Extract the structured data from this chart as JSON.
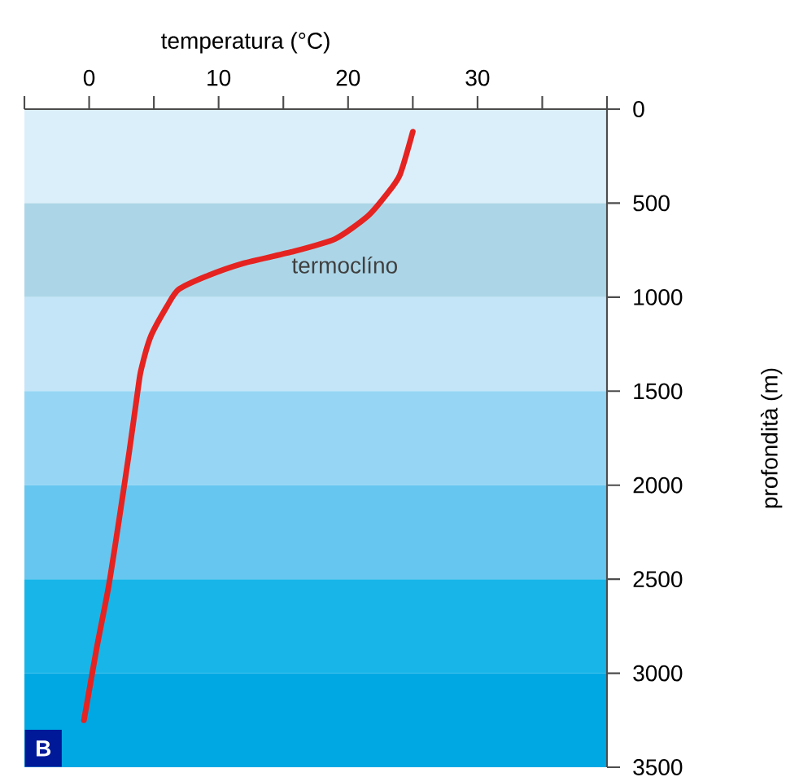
{
  "chart_data": {
    "type": "line",
    "xlabel": "temperatura (°C)",
    "ylabel": "profondità (m)",
    "xlim": [
      -5,
      40
    ],
    "ylim": [
      3500,
      0
    ],
    "xticks": [
      {
        "value": -5,
        "label": null
      },
      0,
      {
        "value": 5,
        "label": null
      },
      10,
      {
        "value": 15,
        "label": null
      },
      20,
      {
        "value": 25,
        "label": null
      },
      30,
      {
        "value": 35,
        "label": null
      },
      {
        "value": 40,
        "label": null
      }
    ],
    "yticks": [
      0,
      500,
      1000,
      1500,
      2000,
      2500,
      3000,
      3500
    ],
    "series": [
      {
        "color": "#e52320",
        "line_style": "solid",
        "x": [
          25.0,
          24.0,
          22.9,
          21.5,
          19.0,
          15.6,
          11.9,
          9.0,
          6.9,
          6.0,
          4.75,
          4.0,
          3.75,
          3.1,
          2.3,
          1.5,
          0.6,
          -0.4
        ],
        "values": [
          120,
          350,
          460,
          570,
          690,
          760,
          820,
          890,
          960,
          1050,
          1210,
          1390,
          1500,
          1820,
          2190,
          2540,
          2860,
          3250
        ]
      }
    ],
    "bands": [
      {
        "axis": "y",
        "from": 0,
        "to": 500,
        "color": "#dbeffb"
      },
      {
        "axis": "y",
        "from": 500,
        "to": 1000,
        "color": "#acd6e8",
        "label": "termoclíno"
      },
      {
        "axis": "y",
        "from": 1000,
        "to": 1500,
        "color": "#c3e5f7"
      },
      {
        "axis": "y",
        "from": 1500,
        "to": 2000,
        "color": "#96d6f4"
      },
      {
        "axis": "y",
        "from": 2000,
        "to": 2500,
        "color": "#66c6ef"
      },
      {
        "axis": "y",
        "from": 2500,
        "to": 3000,
        "color": "#18b5e8"
      },
      {
        "axis": "y",
        "from": 3000,
        "to": 3500,
        "color": "#00a8e3"
      }
    ],
    "annotations": [
      "B"
    ],
    "grid": false
  }
}
